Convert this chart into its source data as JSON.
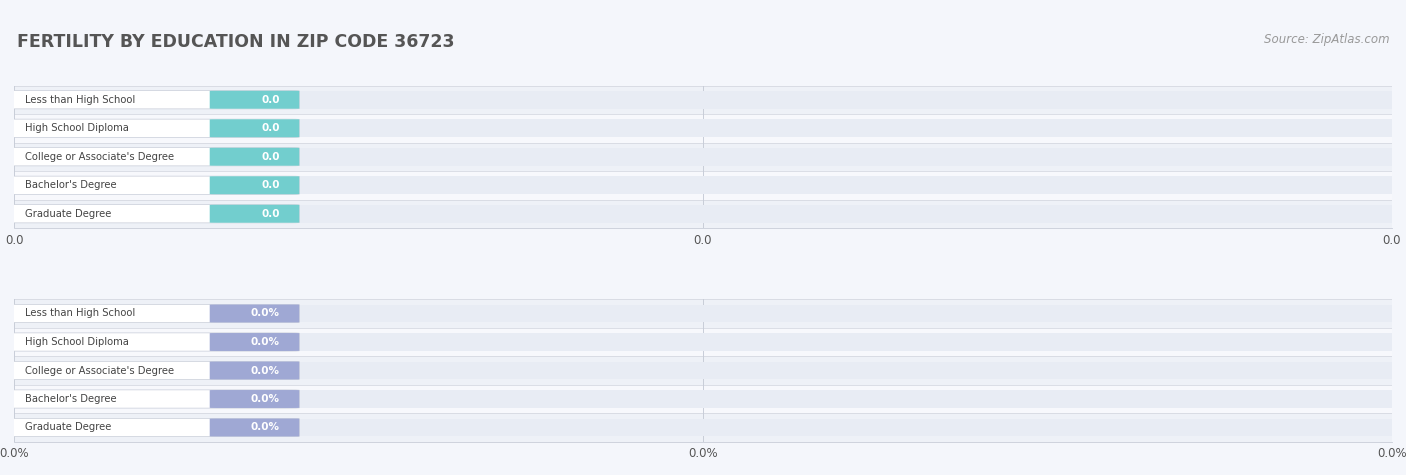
{
  "title": "FERTILITY BY EDUCATION IN ZIP CODE 36723",
  "source_text": "Source: ZipAtlas.com",
  "categories": [
    "Less than High School",
    "High School Diploma",
    "College or Associate's Degree",
    "Bachelor's Degree",
    "Graduate Degree"
  ],
  "values_top": [
    0.0,
    0.0,
    0.0,
    0.0,
    0.0
  ],
  "values_bottom": [
    0.0,
    0.0,
    0.0,
    0.0,
    0.0
  ],
  "bar_color_top": "#72cece",
  "bar_color_bottom": "#9fa8d4",
  "bar_bg_color": "#e8ecf4",
  "row_bg_even": "#eef1f7",
  "row_bg_odd": "#f7f8fc",
  "label_dark": "#555555",
  "value_white": "#ffffff",
  "title_color": "#555555",
  "source_color": "#999999",
  "grid_color": "#d0d4dd",
  "figsize": [
    14.06,
    4.75
  ],
  "dpi": 100,
  "top_tick_labels": [
    "0.0",
    "0.0",
    "0.0"
  ],
  "bottom_tick_labels": [
    "0.0%",
    "0.0%",
    "0.0%"
  ]
}
